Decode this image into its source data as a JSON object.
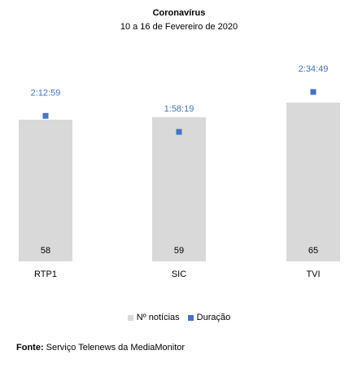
{
  "chart_data": {
    "type": "bar",
    "title": "Coronavírus",
    "subtitle": "10 a 16 de Fevereiro de 2020",
    "categories": [
      "RTP1",
      "SIC",
      "TVI"
    ],
    "series": [
      {
        "name": "Nº notícias",
        "values": [
          58,
          59,
          65
        ],
        "labels": [
          "58",
          "59",
          "65"
        ],
        "color": "#d9d9d9"
      },
      {
        "name": "Duração",
        "values_seconds": [
          7979,
          7099,
          9289
        ],
        "labels": [
          "2:12:59",
          "1:58:19",
          "2:34:49"
        ],
        "color": "#4472c4",
        "marker": "square"
      }
    ],
    "legend_position": "bottom",
    "grid": false
  },
  "source": {
    "label": "Fonte:",
    "text": "Serviço Telenews da MediaMonitor"
  }
}
